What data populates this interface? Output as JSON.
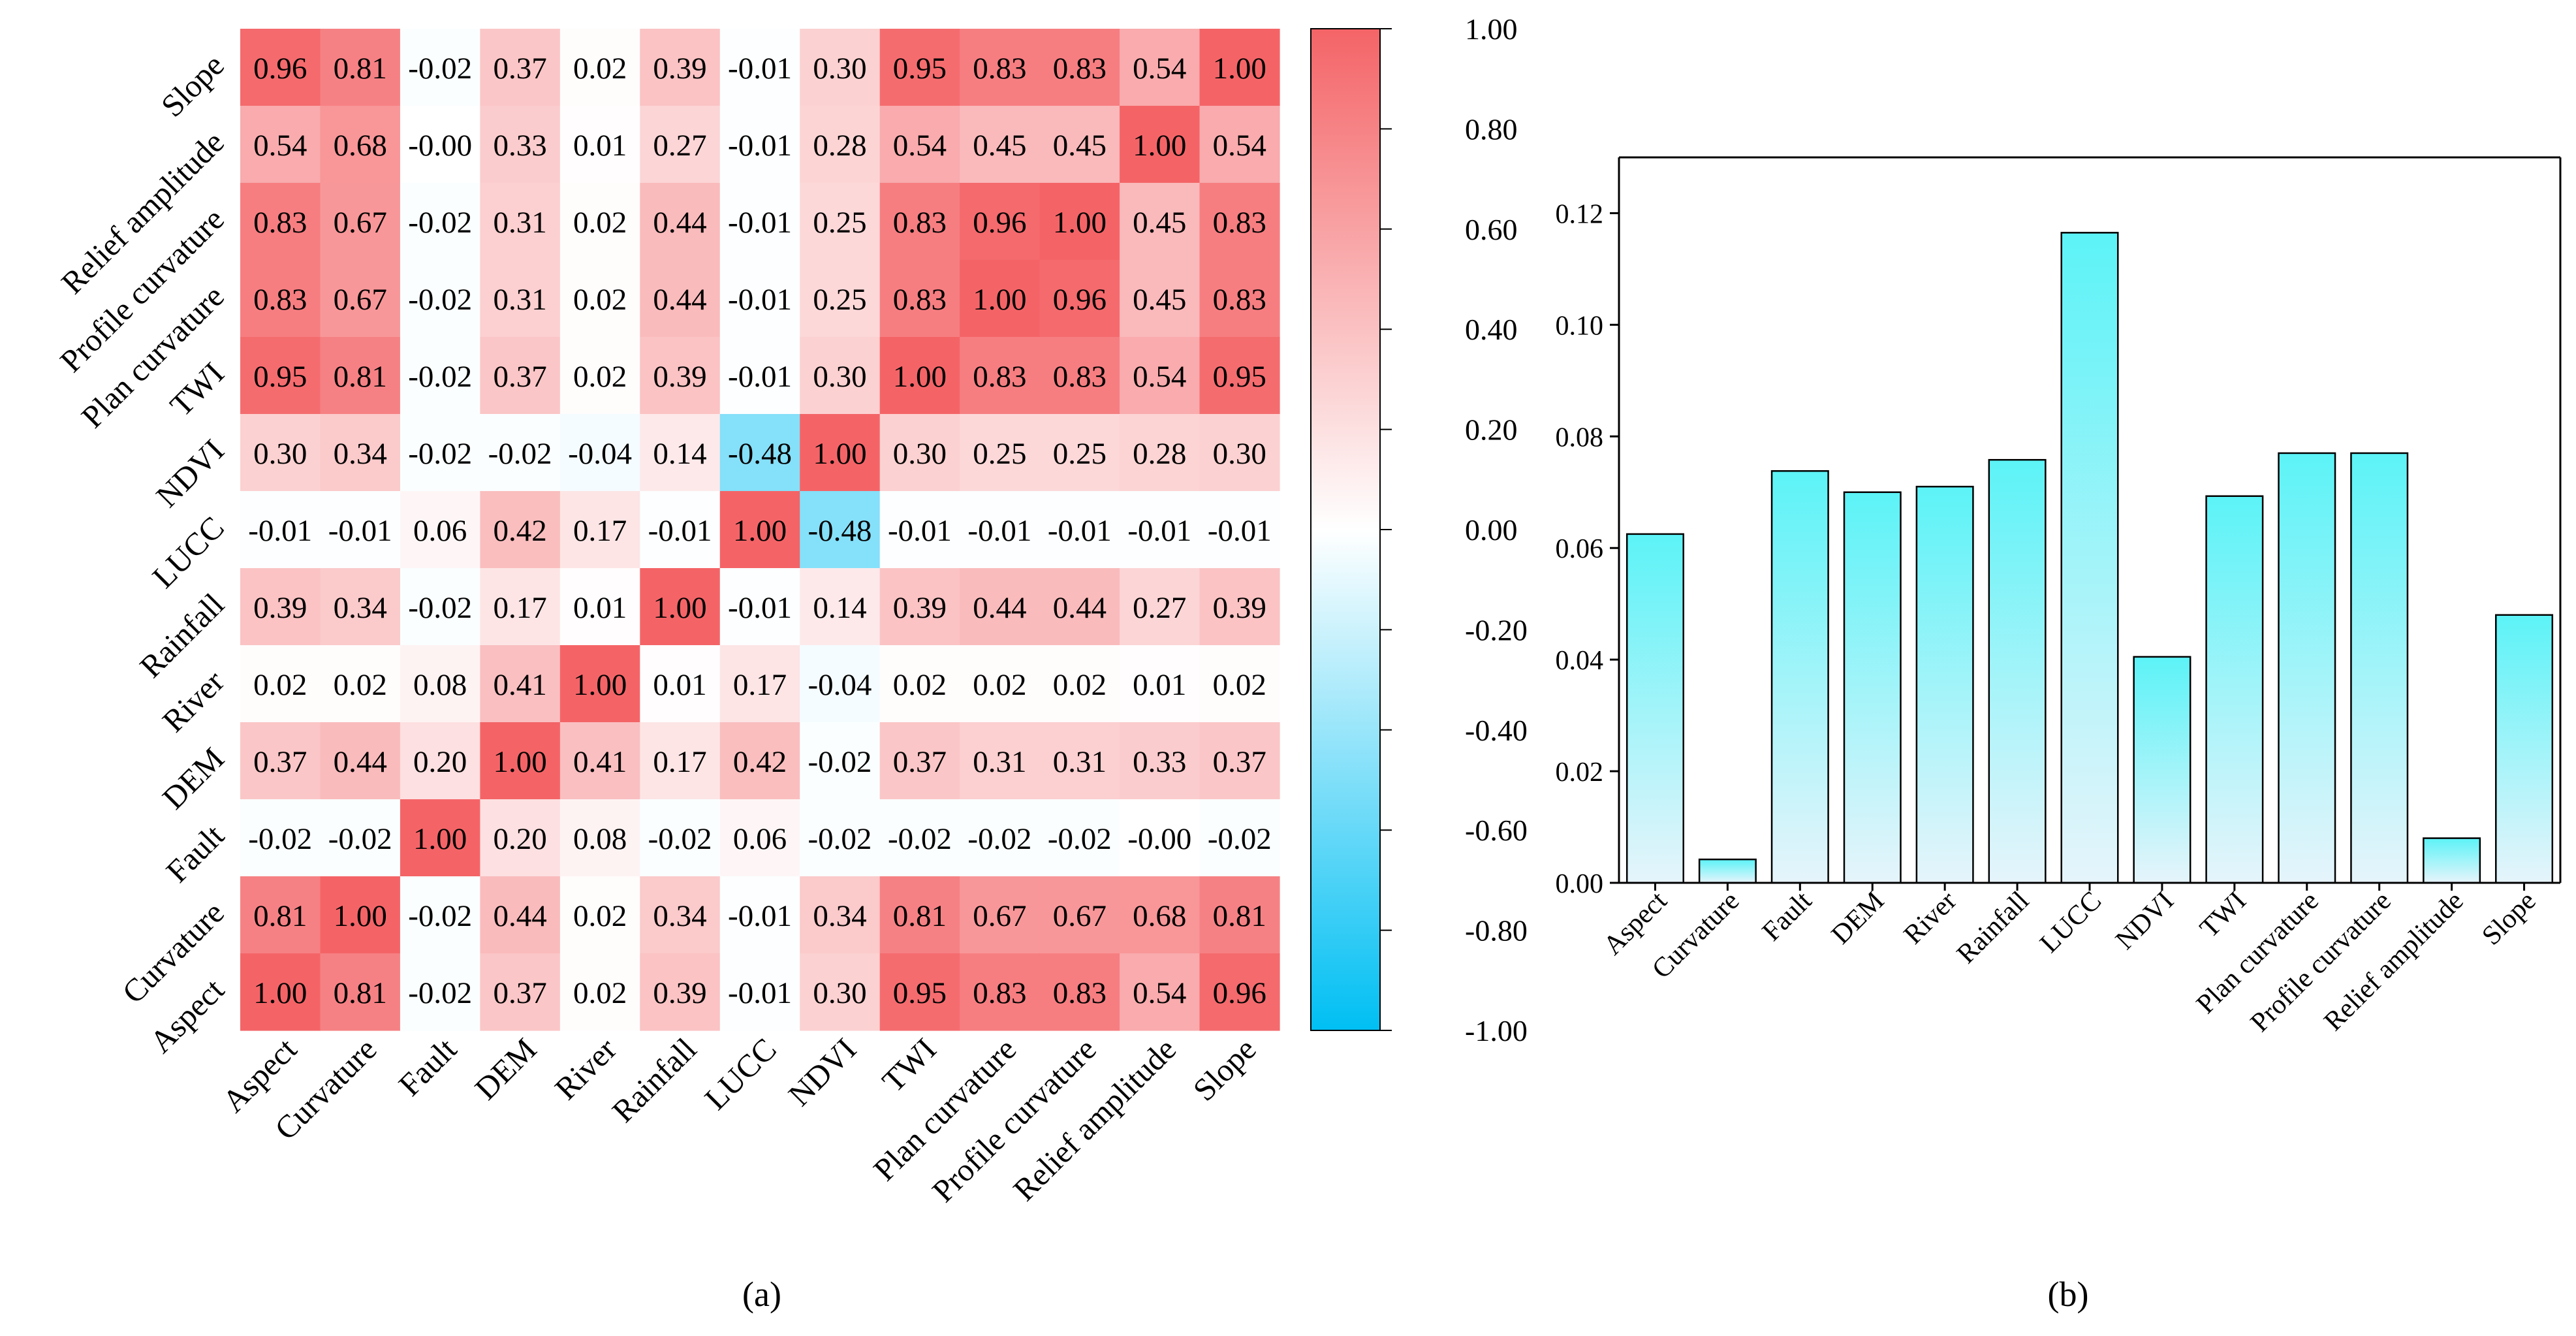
{
  "chart_data": [
    {
      "type": "heatmap",
      "panel_label": "(a)",
      "title": "",
      "variables": [
        "Aspect",
        "Curvature",
        "Fault",
        "DEM",
        "River",
        "Rainfall",
        "LUCC",
        "NDVI",
        "TWI",
        "Plan curvature",
        "Profile curvature",
        "Relief amplitude",
        "Slope"
      ],
      "x_labels": [
        "Aspect",
        "Curvature",
        "Fault",
        "DEM",
        "River",
        "Rainfall",
        "LUCC",
        "NDVI",
        "TWI",
        "Plan curvature",
        "Profile curvature",
        "Relief amplitude",
        "Slope"
      ],
      "y_labels_top_to_bottom": [
        "Slope",
        "Relief amplitude",
        "Profile curvature",
        "Plan curvature",
        "TWI",
        "NDVI",
        "LUCC",
        "Rainfall",
        "River",
        "DEM",
        "Fault",
        "Curvature",
        "Aspect"
      ],
      "rows_top_to_bottom": [
        [
          "0.96",
          "0.81",
          "-0.02",
          "0.37",
          "0.02",
          "0.39",
          "-0.01",
          "0.30",
          "0.95",
          "0.83",
          "0.83",
          "0.54",
          "1.00"
        ],
        [
          "0.54",
          "0.68",
          "-0.00",
          "0.33",
          "0.01",
          "0.27",
          "-0.01",
          "0.28",
          "0.54",
          "0.45",
          "0.45",
          "1.00",
          "0.54"
        ],
        [
          "0.83",
          "0.67",
          "-0.02",
          "0.31",
          "0.02",
          "0.44",
          "-0.01",
          "0.25",
          "0.83",
          "0.96",
          "1.00",
          "0.45",
          "0.83"
        ],
        [
          "0.83",
          "0.67",
          "-0.02",
          "0.31",
          "0.02",
          "0.44",
          "-0.01",
          "0.25",
          "0.83",
          "1.00",
          "0.96",
          "0.45",
          "0.83"
        ],
        [
          "0.95",
          "0.81",
          "-0.02",
          "0.37",
          "0.02",
          "0.39",
          "-0.01",
          "0.30",
          "1.00",
          "0.83",
          "0.83",
          "0.54",
          "0.95"
        ],
        [
          "0.30",
          "0.34",
          "-0.02",
          "-0.02",
          "-0.04",
          "0.14",
          "-0.48",
          "1.00",
          "0.30",
          "0.25",
          "0.25",
          "0.28",
          "0.30"
        ],
        [
          "-0.01",
          "-0.01",
          "0.06",
          "0.42",
          "0.17",
          "-0.01",
          "1.00",
          "-0.48",
          "-0.01",
          "-0.01",
          "-0.01",
          "-0.01",
          "-0.01"
        ],
        [
          "0.39",
          "0.34",
          "-0.02",
          "0.17",
          "0.01",
          "1.00",
          "-0.01",
          "0.14",
          "0.39",
          "0.44",
          "0.44",
          "0.27",
          "0.39"
        ],
        [
          "0.02",
          "0.02",
          "0.08",
          "0.41",
          "1.00",
          "0.01",
          "0.17",
          "-0.04",
          "0.02",
          "0.02",
          "0.02",
          "0.01",
          "0.02"
        ],
        [
          "0.37",
          "0.44",
          "0.20",
          "1.00",
          "0.41",
          "0.17",
          "0.42",
          "-0.02",
          "0.37",
          "0.31",
          "0.31",
          "0.33",
          "0.37"
        ],
        [
          "-0.02",
          "-0.02",
          "1.00",
          "0.20",
          "0.08",
          "-0.02",
          "0.06",
          "-0.02",
          "-0.02",
          "-0.02",
          "-0.02",
          "-0.00",
          "-0.02"
        ],
        [
          "0.81",
          "1.00",
          "-0.02",
          "0.44",
          "0.02",
          "0.34",
          "-0.01",
          "0.34",
          "0.81",
          "0.67",
          "0.67",
          "0.68",
          "0.81"
        ],
        [
          "1.00",
          "0.81",
          "-0.02",
          "0.37",
          "0.02",
          "0.39",
          "-0.01",
          "0.30",
          "0.95",
          "0.83",
          "0.83",
          "0.54",
          "0.96"
        ]
      ],
      "colorbar": {
        "range": [
          -1.0,
          1.0
        ],
        "ticks": [
          "1.00",
          "0.80",
          "0.60",
          "0.40",
          "0.20",
          "0.00",
          "-0.20",
          "-0.40",
          "-0.60",
          "-0.80",
          "-1.00"
        ],
        "positive_color": "#f46467",
        "neutral_color": "#ffffff",
        "negative_color": "#00bff3"
      }
    },
    {
      "type": "bar",
      "panel_label": "(b)",
      "title": "",
      "xlabel": "",
      "ylabel": "",
      "categories": [
        "Aspect",
        "Curvature",
        "Fault",
        "DEM",
        "River",
        "Rainfall",
        "LUCC",
        "NDVI",
        "TWI",
        "Plan curvature",
        "Profile curvature",
        "Relief amplitude",
        "Slope"
      ],
      "values": [
        0.0625,
        0.0042,
        0.0738,
        0.07,
        0.071,
        0.0758,
        0.1165,
        0.0405,
        0.0693,
        0.077,
        0.077,
        0.008,
        0.048
      ],
      "ylim": [
        0,
        0.13
      ],
      "yticks": [
        "0.00",
        "0.02",
        "0.04",
        "0.06",
        "0.08",
        "0.10",
        "0.12"
      ],
      "bar_top_color": "#5cf3f7",
      "bar_bottom_color": "#e6f4fb"
    }
  ]
}
